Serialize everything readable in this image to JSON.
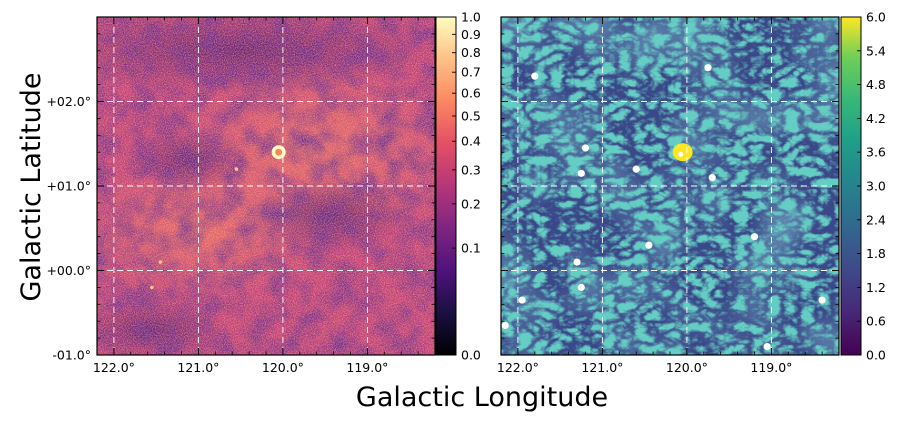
{
  "figure": {
    "xlabel": "Galactic Longitude",
    "ylabel": "Galactic Latitude"
  },
  "chart_data": [
    {
      "type": "heatmap",
      "panel": "left",
      "colormap": "magma",
      "scale": "sqrt",
      "xlabel": "Galactic Longitude",
      "ylabel": "Galactic Latitude",
      "xlim": [
        122.2,
        118.2
      ],
      "ylim": [
        -1.0,
        3.0
      ],
      "x_ticks": [
        122.0,
        121.0,
        120.0,
        119.0
      ],
      "x_tick_labels": [
        "122.0°",
        "121.0°",
        "120.0°",
        "119.0°"
      ],
      "y_ticks": [
        -1.0,
        0.0,
        1.0,
        2.0
      ],
      "y_tick_labels": [
        "-01.0°",
        "+00.0°",
        "+01.0°",
        "+02.0°"
      ],
      "grid": true,
      "colorbar": {
        "range": [
          0.0,
          1.0
        ],
        "ticks": [
          0.0,
          0.1,
          0.2,
          0.3,
          0.4,
          0.5,
          0.6,
          0.7,
          0.8,
          0.9,
          1.0
        ],
        "tick_labels": [
          "0.0",
          "0.1",
          "0.2",
          "0.3",
          "0.4",
          "0.5",
          "0.6",
          "0.7",
          "0.8",
          "0.9",
          "1.0"
        ]
      },
      "sources": [
        {
          "l": 120.05,
          "b": 1.4,
          "level": 1.0,
          "kind": "ring"
        },
        {
          "l": 120.55,
          "b": 1.2,
          "level": 0.8,
          "kind": "dot"
        },
        {
          "l": 121.45,
          "b": 0.1,
          "level": 0.7,
          "kind": "dot"
        },
        {
          "l": 121.55,
          "b": -0.2,
          "level": 0.7,
          "kind": "dot"
        }
      ]
    },
    {
      "type": "heatmap",
      "panel": "right",
      "colormap": "viridis",
      "scale": "linear",
      "xlim": [
        122.2,
        118.2
      ],
      "ylim": [
        -1.0,
        3.0
      ],
      "x_ticks": [
        122.0,
        121.0,
        120.0,
        119.0
      ],
      "x_tick_labels": [
        "122.0°",
        "121.0°",
        "120.0°",
        "119.0°"
      ],
      "grid": true,
      "colorbar": {
        "range": [
          0.0,
          6.0
        ],
        "ticks": [
          0.0,
          0.6,
          1.2,
          1.8,
          2.4,
          3.0,
          3.6,
          4.2,
          4.8,
          5.4,
          6.0
        ],
        "tick_labels": [
          "0.0",
          "0.6",
          "1.2",
          "1.8",
          "2.4",
          "3.0",
          "3.6",
          "4.2",
          "4.8",
          "5.4",
          "6.0"
        ]
      },
      "bright_source": {
        "l": 120.05,
        "b": 1.4,
        "level": 6.0
      },
      "masked_sources": [
        {
          "l": 121.8,
          "b": 2.3
        },
        {
          "l": 119.75,
          "b": 2.4
        },
        {
          "l": 121.2,
          "b": 1.45
        },
        {
          "l": 121.25,
          "b": 1.15
        },
        {
          "l": 120.6,
          "b": 1.2
        },
        {
          "l": 119.7,
          "b": 1.1
        },
        {
          "l": 119.2,
          "b": 0.4
        },
        {
          "l": 120.45,
          "b": 0.3
        },
        {
          "l": 121.3,
          "b": 0.1
        },
        {
          "l": 121.25,
          "b": -0.2
        },
        {
          "l": 121.95,
          "b": -0.35
        },
        {
          "l": 122.15,
          "b": -0.65
        },
        {
          "l": 118.4,
          "b": -0.35
        },
        {
          "l": 119.05,
          "b": -0.9
        }
      ]
    }
  ]
}
